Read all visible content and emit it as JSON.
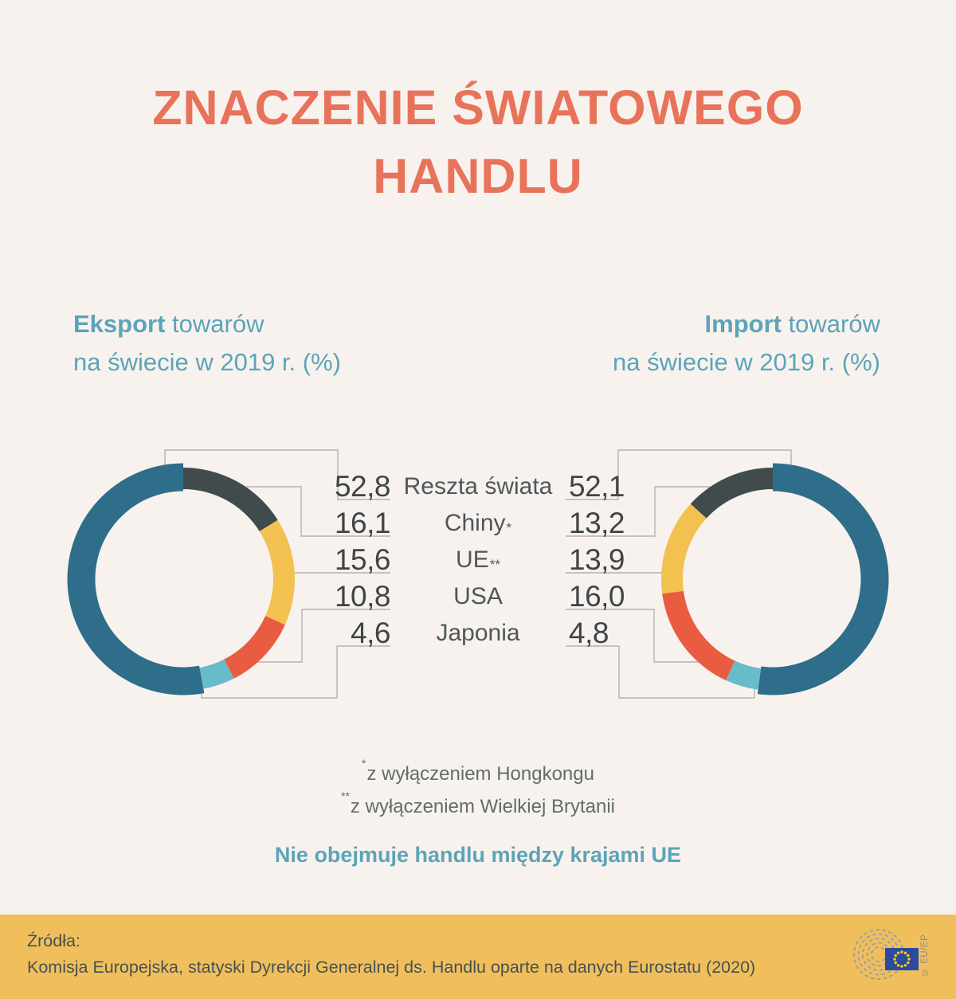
{
  "title": {
    "line1": "ZNACZENIE ŚWIATOWEGO",
    "line2": "HANDLU"
  },
  "subtitles": {
    "left": {
      "bold": "Eksport",
      "rest": " towarów",
      "line2": "na świecie w 2019 r. (%)"
    },
    "right": {
      "bold": "Import",
      "rest": " towarów",
      "line2": "na świecie w 2019 r. (%)"
    }
  },
  "chart_data": {
    "type": "donut-pair",
    "categories": [
      "Reszta świata",
      "Chiny*",
      "UE**",
      "USA",
      "Japonia"
    ],
    "series": [
      {
        "name": "Eksport towarów na świecie w 2019 r. (%)",
        "values": [
          52.8,
          16.1,
          15.6,
          10.8,
          4.6
        ]
      },
      {
        "name": "Import towarów na świecie w 2019 r. (%)",
        "values": [
          52.1,
          13.2,
          13.9,
          16.0,
          4.8
        ]
      }
    ],
    "unit": "%",
    "year": "2019",
    "legend_position": "center-between-charts",
    "grid": false
  },
  "rows": [
    {
      "label": "Reszta świata",
      "sup": "",
      "export": "52,8",
      "import": "52,1",
      "color": "#2f6e8a"
    },
    {
      "label": "Chiny",
      "sup": "*",
      "export": "16,1",
      "import": "13,2",
      "color": "#404b4c"
    },
    {
      "label": "UE",
      "sup": "**",
      "export": "15,6",
      "import": "13,9",
      "color": "#f2c150"
    },
    {
      "label": "USA",
      "sup": "",
      "export": "10,8",
      "import": "16,0",
      "color": "#e95c41"
    },
    {
      "label": "Japonia",
      "sup": "",
      "export": "4,6",
      "import": "4,8",
      "color": "#68bcca"
    }
  ],
  "footnotes": [
    {
      "sup": "*",
      "text": "z wyłączeniem Hongkongu"
    },
    {
      "sup": "**",
      "text": "z wyłączeniem Wielkiej Brytanii"
    }
  ],
  "note": "Nie obejmuje handlu między krajami UE",
  "footer": {
    "sources_label": "Źródła:",
    "source": "Komisja Europejska, statyski Dyrekcji Generalnej ds. Handlu oparte na danych Eurostatu (2020)",
    "copyright": "© EU/EP"
  },
  "colors": {
    "background": "#f8f2ee",
    "title": "#e8735a",
    "accent_teal_text": "#5ba4b9",
    "value_text": "#3f4547",
    "connector": "#b7b2ae",
    "footer_background": "#f0bf5c",
    "footer_text": "#475153",
    "segment_rest_of_world": "#2f6e8a",
    "segment_china": "#404b4c",
    "segment_eu": "#f2c150",
    "segment_usa": "#e95c41",
    "segment_japan": "#68bcca",
    "eu_flag_blue": "#2b4aa0",
    "eu_flag_stars": "#f7d117"
  }
}
